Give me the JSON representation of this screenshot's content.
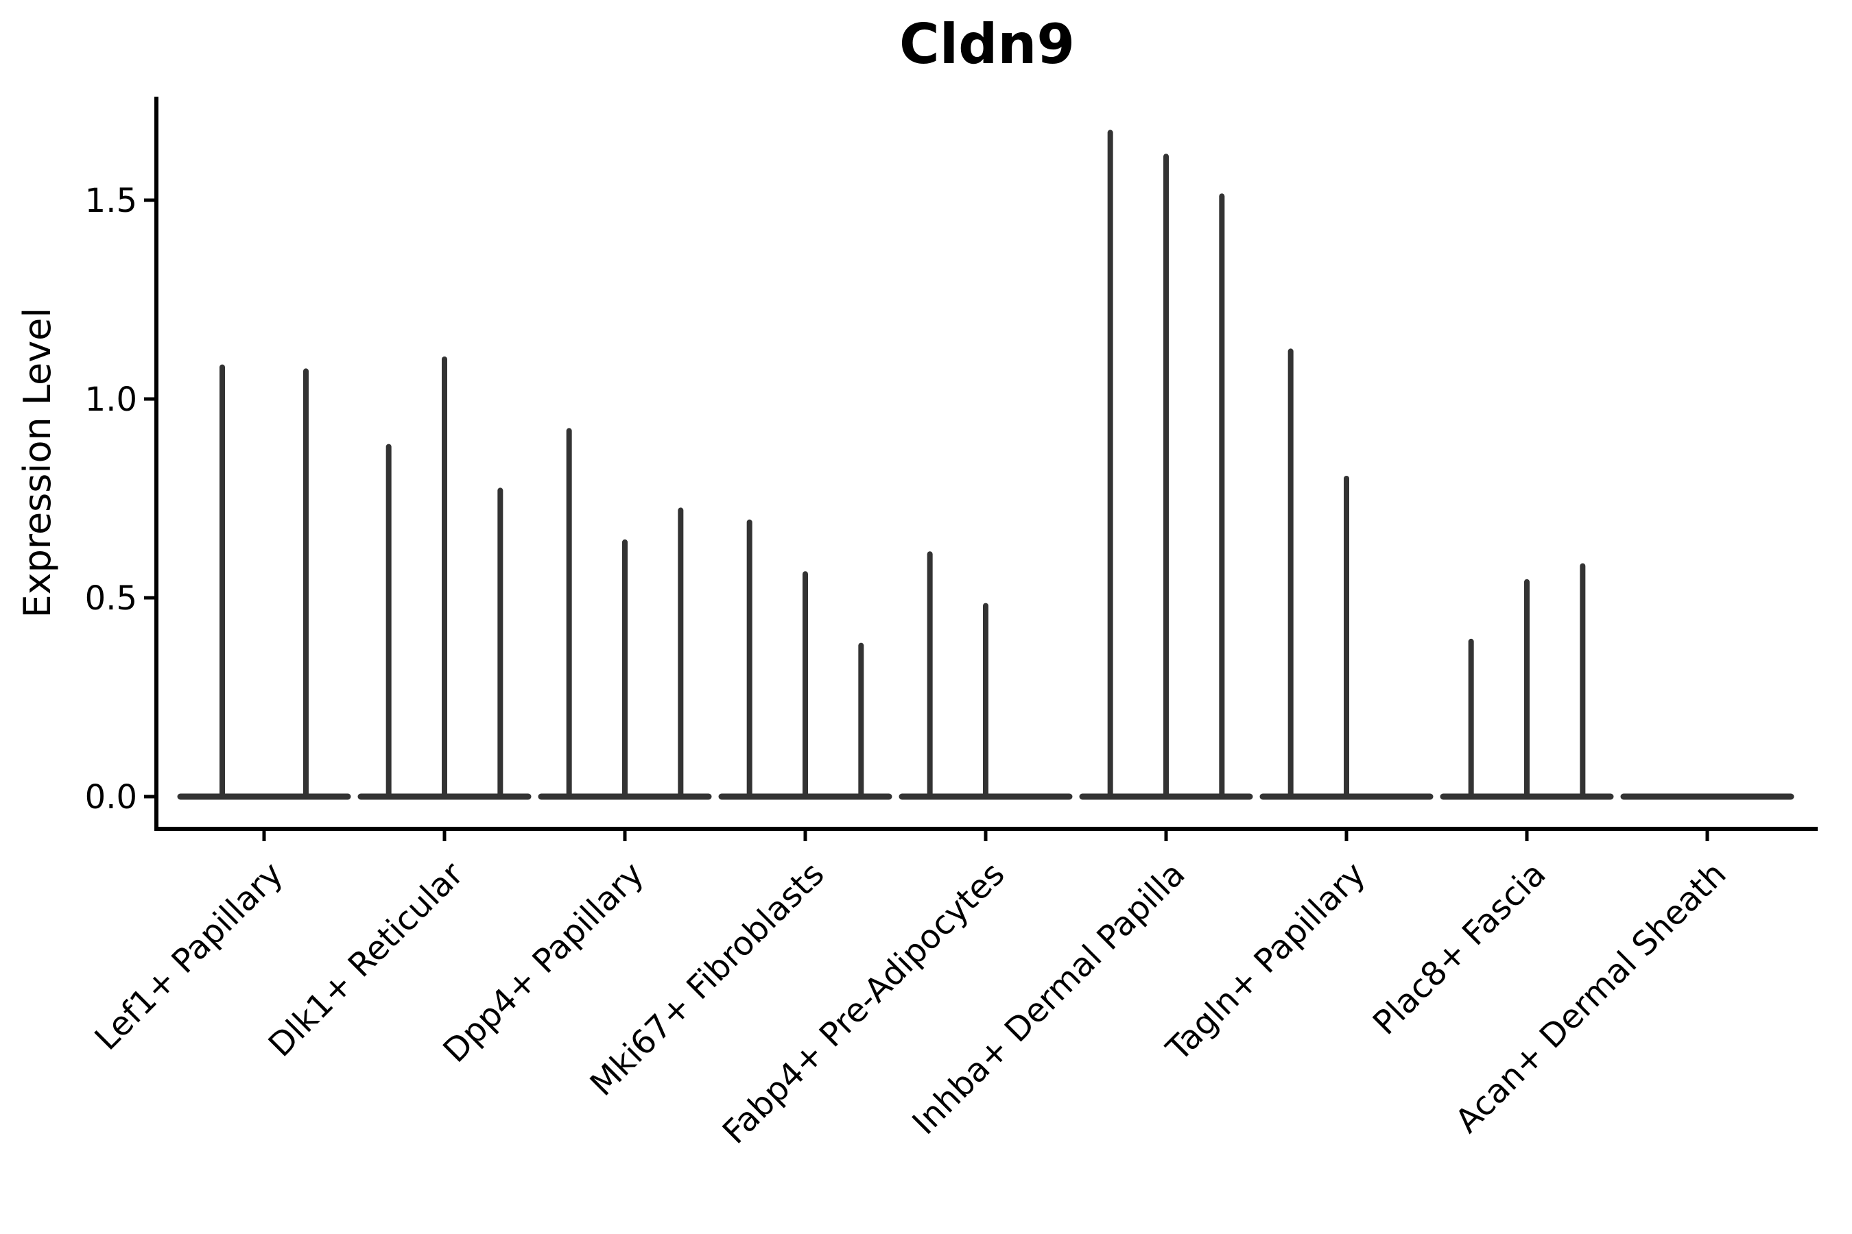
{
  "chart_data": {
    "type": "violin",
    "title": "Cldn9",
    "xlabel": "",
    "ylabel": "Expression Level",
    "ylim": [
      -0.08,
      1.76
    ],
    "yticks": [
      0.0,
      0.5,
      1.0,
      1.5
    ],
    "ytick_labels": [
      "0.0",
      "0.5",
      "1.0",
      "1.5"
    ],
    "grid": false,
    "legend_position": "none",
    "background_color": "#ffffff",
    "violin_color": "#333333",
    "axis_color": "#000000",
    "description": "Violin plot of Cldn9 expression; violins are near-zero-width spikes rising from a flat base at 0. Each category contains 2-3 sub-violins; spike value = maximum expression of each sub-violin (0 = flat, no spike).",
    "categories": [
      "Lef1+ Papillary",
      "Dlk1+ Reticular",
      "Dpp4+ Papillary",
      "Mki67+ Fibroblasts",
      "Fabp4+ Pre-Adipocytes",
      "Inhba+ Dermal Papilla",
      "Tagln+ Papillary",
      "Plac8+ Fascia",
      "Acan+ Dermal Sheath"
    ],
    "groups": [
      {
        "label": "Lef1+ Papillary",
        "violin_maxima": [
          1.08,
          1.07
        ]
      },
      {
        "label": "Dlk1+ Reticular",
        "violin_maxima": [
          0.88,
          1.1,
          0.77
        ]
      },
      {
        "label": "Dpp4+ Papillary",
        "violin_maxima": [
          0.92,
          0.64,
          0.72
        ]
      },
      {
        "label": "Mki67+ Fibroblasts",
        "violin_maxima": [
          0.69,
          0.56,
          0.38
        ]
      },
      {
        "label": "Fabp4+ Pre-Adipocytes",
        "violin_maxima": [
          0.61,
          0.48,
          0
        ]
      },
      {
        "label": "Inhba+ Dermal Papilla",
        "violin_maxima": [
          1.67,
          1.61,
          1.51
        ]
      },
      {
        "label": "Tagln+ Papillary",
        "violin_maxima": [
          1.12,
          0.8,
          0
        ]
      },
      {
        "label": "Plac8+ Fascia",
        "violin_maxima": [
          0.39,
          0.54,
          0.58
        ]
      },
      {
        "label": "Acan+ Dermal Sheath",
        "violin_maxima": [
          0,
          0,
          0
        ]
      }
    ]
  }
}
